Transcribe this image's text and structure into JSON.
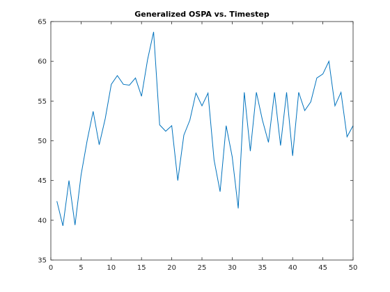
{
  "chart_data": {
    "type": "line",
    "title": "Generalized OSPA vs. Timestep",
    "xlabel": "",
    "ylabel": "",
    "xlim": [
      0,
      50
    ],
    "ylim": [
      35,
      65
    ],
    "x_ticks": [
      0,
      5,
      10,
      15,
      20,
      25,
      30,
      35,
      40,
      45,
      50
    ],
    "y_ticks": [
      35,
      40,
      45,
      50,
      55,
      60,
      65
    ],
    "grid": false,
    "line_color": "#0072BD",
    "series": [
      {
        "x": [
          1,
          2,
          3,
          4,
          5,
          6,
          7,
          8,
          9,
          10,
          11,
          12,
          13,
          14,
          15,
          16,
          17,
          18,
          19,
          20,
          21,
          22,
          23,
          24,
          25,
          26,
          27,
          28,
          29,
          30,
          31,
          32,
          33,
          34,
          35,
          36,
          37,
          38,
          39,
          40,
          41,
          42,
          43,
          44,
          45,
          46,
          47,
          48,
          49,
          50
        ],
        "values": [
          42.4,
          39.3,
          45.0,
          39.4,
          45.7,
          50.0,
          53.7,
          49.5,
          52.8,
          57.1,
          58.2,
          57.1,
          57.0,
          57.9,
          55.6,
          60.2,
          63.7,
          52.0,
          51.2,
          51.9,
          45.0,
          50.7,
          52.6,
          56.0,
          54.4,
          56.0,
          47.6,
          43.6,
          51.9,
          48.0,
          41.5,
          56.1,
          48.7,
          56.1,
          52.6,
          49.8,
          56.1,
          49.4,
          56.1,
          48.1,
          56.1,
          53.8,
          54.9,
          57.9,
          58.4,
          60.0,
          54.4,
          56.1,
          50.5,
          51.9
        ]
      }
    ]
  }
}
